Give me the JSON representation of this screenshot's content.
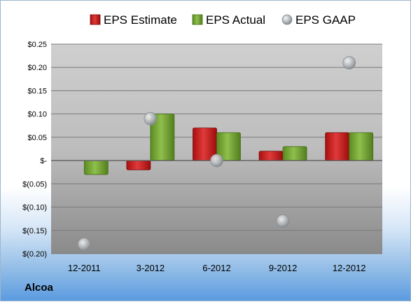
{
  "company": "Alcoa",
  "colors": {
    "estimate": "#d42b2b",
    "actual": "#82b042",
    "gaap": "#b8bcc0"
  },
  "chart_data": {
    "type": "bar",
    "categories": [
      "12-2011",
      "3-2012",
      "6-2012",
      "9-2012",
      "12-2012"
    ],
    "series": [
      {
        "name": "EPS Estimate",
        "kind": "bar",
        "values": [
          null,
          -0.02,
          0.07,
          0.02,
          0.06
        ]
      },
      {
        "name": "EPS Actual",
        "kind": "bar",
        "values": [
          -0.03,
          0.1,
          0.06,
          0.03,
          0.06
        ]
      },
      {
        "name": "EPS GAAP",
        "kind": "scatter",
        "values": [
          -0.18,
          0.09,
          0.0,
          -0.13,
          0.21
        ]
      }
    ],
    "y_ticks": [
      0.25,
      0.2,
      0.15,
      0.1,
      0.05,
      0,
      -0.05,
      -0.1,
      -0.15,
      -0.2
    ],
    "y_tick_labels": [
      "$0.25",
      "$0.20",
      "$0.15",
      "$0.10",
      "$0.05",
      "$-",
      "$(0.05)",
      "$(0.10)",
      "$(0.15)",
      "$(0.20)"
    ],
    "ylim": [
      -0.2,
      0.25
    ],
    "grid": true,
    "legend": "top"
  }
}
